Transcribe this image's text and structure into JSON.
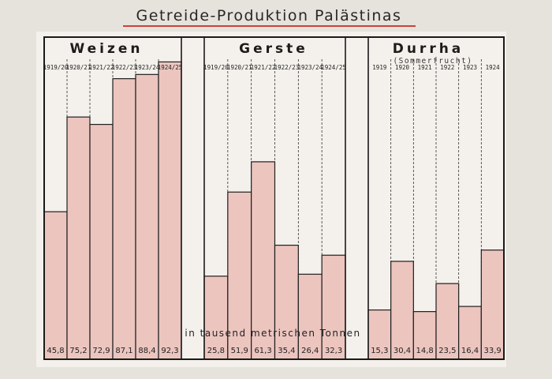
{
  "colors": {
    "background": "#e6e2dc",
    "panel": "#f4f1ec",
    "bar": "#ecc5bf",
    "title_underline": "#c9433a",
    "frame": "#1a1a1a"
  },
  "chart_data": {
    "type": "bar",
    "title": "Getreide-Produktion Palästinas",
    "unit_label": "in tausend metrischen Tonnen",
    "ylim": [
      0,
      100
    ],
    "groups": [
      {
        "name": "Weizen",
        "subtitle": "",
        "categories": [
          "1919/20",
          "1920/21",
          "1921/22",
          "1922/23",
          "1923/24",
          "1924/25"
        ],
        "values": [
          45.8,
          75.2,
          72.9,
          87.1,
          88.4,
          92.3
        ],
        "value_labels": [
          "45,8",
          "75,2",
          "72,9",
          "87,1",
          "88,4",
          "92,3"
        ]
      },
      {
        "name": "Gerste",
        "subtitle": "",
        "categories": [
          "1919/20",
          "1920/21",
          "1921/22",
          "1922/23",
          "1923/24",
          "1924/25"
        ],
        "values": [
          25.8,
          51.9,
          61.3,
          35.4,
          26.4,
          32.3
        ],
        "value_labels": [
          "25,8",
          "51,9",
          "61,3",
          "35,4",
          "26,4",
          "32,3"
        ]
      },
      {
        "name": "Durrha",
        "subtitle": "(Sommerfrucht)",
        "categories": [
          "1919",
          "1920",
          "1921",
          "1922",
          "1923",
          "1924"
        ],
        "values": [
          15.3,
          30.4,
          14.8,
          23.5,
          16.4,
          33.9
        ],
        "value_labels": [
          "15,3",
          "30,4",
          "14,8",
          "23,5",
          "16,4",
          "33,9"
        ]
      }
    ]
  }
}
